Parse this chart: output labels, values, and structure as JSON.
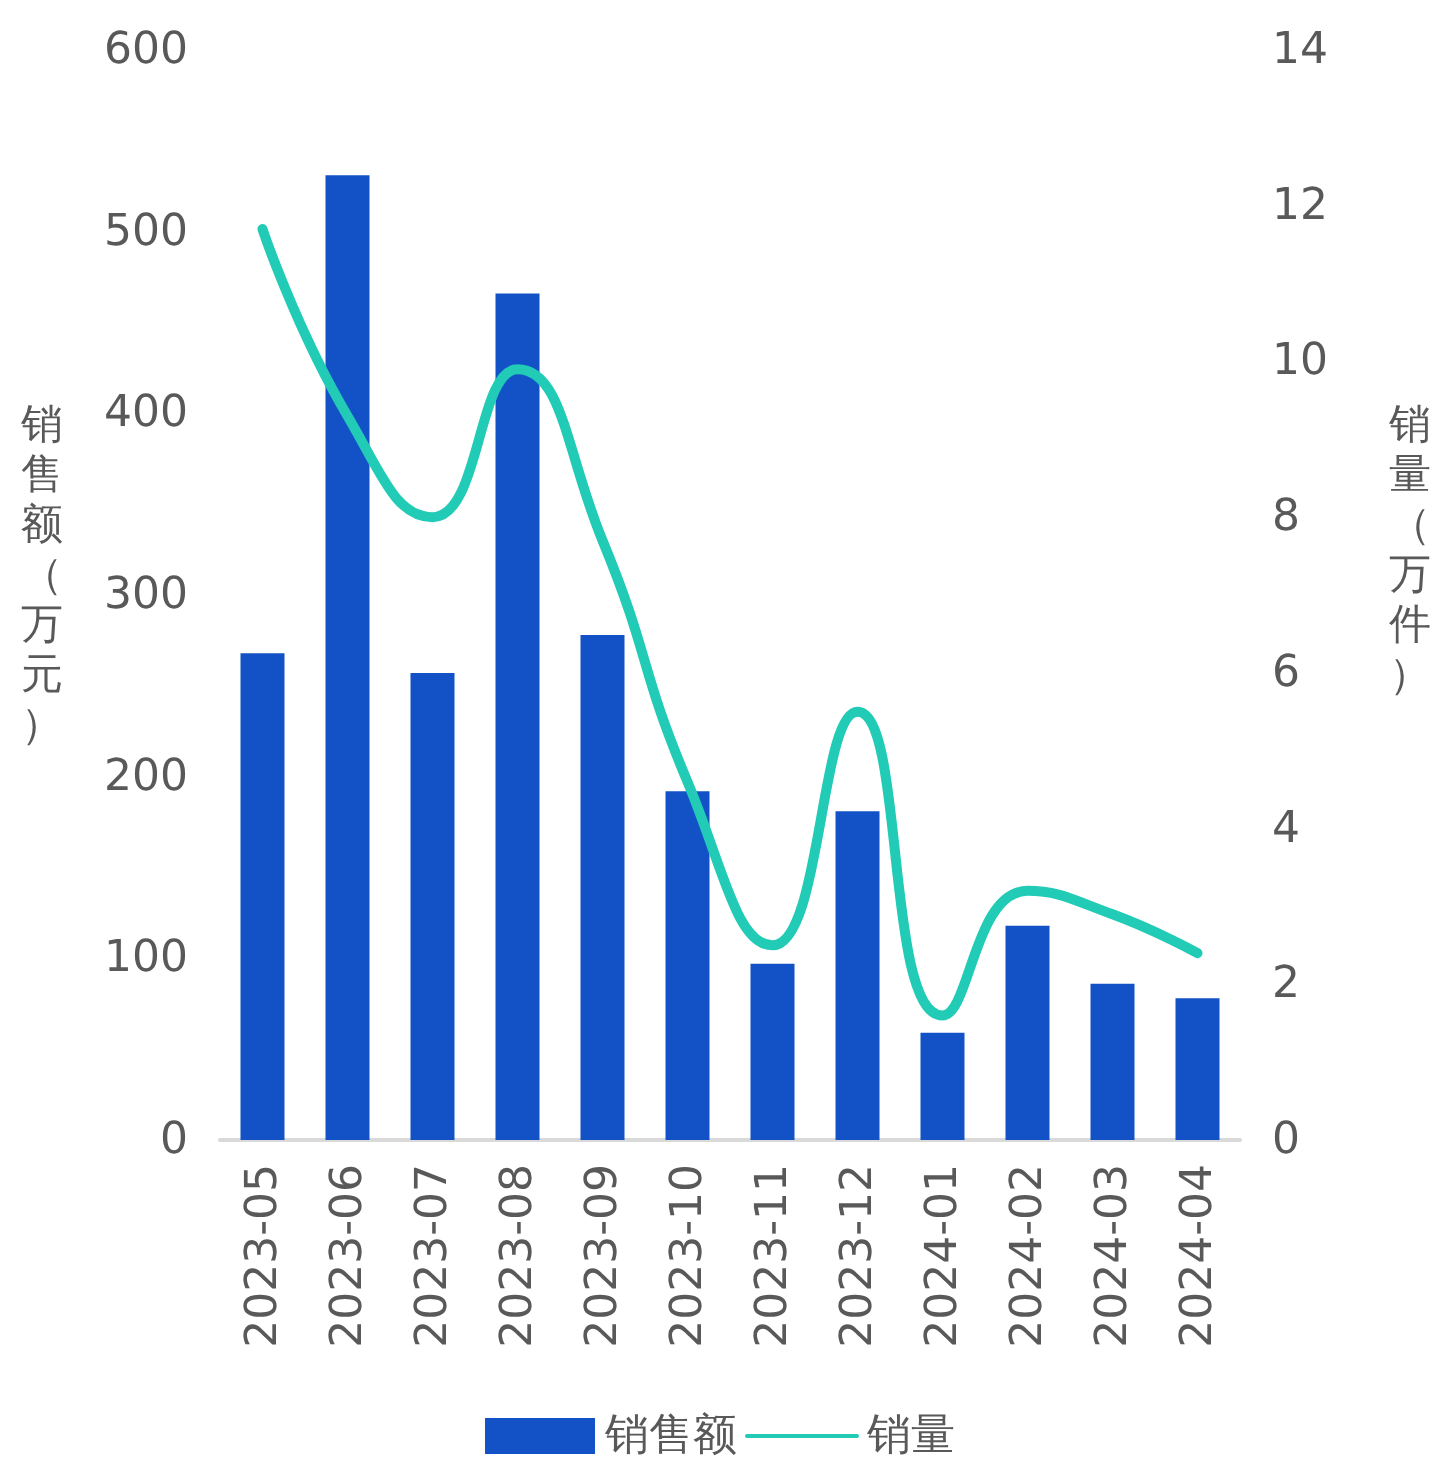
{
  "chart_data": {
    "type": "bar",
    "categories": [
      "2023-05",
      "2023-06",
      "2023-07",
      "2023-08",
      "2023-09",
      "2023-10",
      "2023-11",
      "2023-12",
      "2024-01",
      "2024-02",
      "2024-03",
      "2024-04"
    ],
    "series": [
      {
        "name": "销售额",
        "type": "bar",
        "color": "#1352c6",
        "values": [
          268,
          531,
          257,
          466,
          278,
          192,
          97,
          181,
          59,
          118,
          86,
          78
        ]
      },
      {
        "name": "销量",
        "type": "line",
        "axis": "y2",
        "color": "#21cbb6",
        "marker": "none",
        "values": [
          11.7,
          9.3,
          8.0,
          9.9,
          7.7,
          4.6,
          2.5,
          5.5,
          1.6,
          3.2,
          2.9,
          2.4
        ]
      }
    ],
    "ylabel": "销售额（万元）",
    "y2label": "销量（万件）",
    "ylim": [
      0,
      600
    ],
    "yticks": [
      0,
      100,
      200,
      300,
      400,
      500,
      600
    ],
    "y2lim": [
      0,
      14
    ],
    "y2ticks": [
      0,
      2,
      4,
      6,
      8,
      10,
      12,
      14
    ],
    "grid": false,
    "legend": "bottom"
  }
}
